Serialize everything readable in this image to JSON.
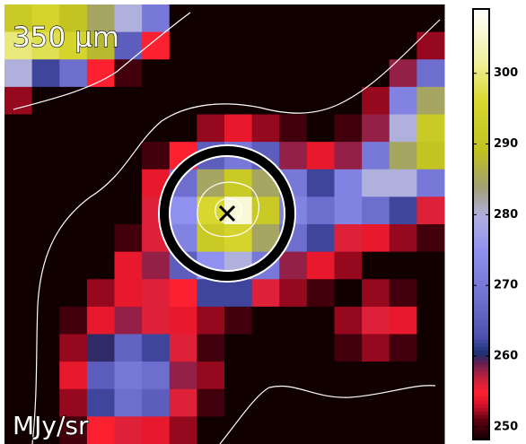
{
  "chart_data": {
    "type": "heatmap",
    "title": "350 μm",
    "colorbar_label": "MJy/sr",
    "z": [
      [
        292,
        295,
        290,
        285,
        280,
        270,
        248,
        248,
        248,
        248,
        248,
        248,
        248,
        248,
        248,
        248
      ],
      [
        300,
        298,
        295,
        288,
        265,
        255,
        248,
        248,
        248,
        248,
        248,
        248,
        248,
        248,
        248,
        252
      ],
      [
        280,
        262,
        268,
        255,
        250,
        248,
        248,
        248,
        248,
        248,
        248,
        248,
        248,
        248,
        258,
        268
      ],
      [
        252,
        248,
        248,
        248,
        248,
        248,
        248,
        248,
        248,
        248,
        248,
        248,
        248,
        252,
        272,
        285
      ],
      [
        248,
        248,
        248,
        248,
        248,
        248,
        248,
        252,
        254,
        252,
        250,
        248,
        250,
        258,
        280,
        292
      ],
      [
        248,
        248,
        248,
        248,
        248,
        250,
        255,
        265,
        270,
        265,
        258,
        254,
        258,
        270,
        285,
        290
      ],
      [
        248,
        248,
        248,
        248,
        248,
        254,
        268,
        285,
        292,
        285,
        270,
        262,
        272,
        280,
        280,
        270
      ],
      [
        248,
        248,
        248,
        248,
        248,
        256,
        275,
        296,
        306,
        292,
        272,
        268,
        272,
        268,
        262,
        256
      ],
      [
        248,
        248,
        248,
        248,
        250,
        256,
        272,
        292,
        295,
        285,
        268,
        262,
        256,
        254,
        252,
        250
      ],
      [
        248,
        248,
        248,
        248,
        254,
        258,
        265,
        275,
        280,
        270,
        258,
        254,
        252,
        248,
        248,
        248
      ],
      [
        248,
        248,
        248,
        252,
        254,
        256,
        255,
        262,
        262,
        256,
        252,
        250,
        248,
        252,
        250,
        248
      ],
      [
        248,
        248,
        250,
        254,
        258,
        256,
        254,
        252,
        250,
        248,
        248,
        248,
        252,
        256,
        254,
        248
      ],
      [
        248,
        248,
        252,
        260,
        266,
        262,
        256,
        250,
        248,
        248,
        248,
        248,
        250,
        252,
        250,
        248
      ],
      [
        248,
        248,
        254,
        265,
        270,
        268,
        258,
        252,
        248,
        248,
        248,
        248,
        248,
        248,
        248,
        248
      ],
      [
        248,
        248,
        252,
        262,
        268,
        265,
        256,
        250,
        248,
        248,
        248,
        248,
        248,
        248,
        248,
        248
      ],
      [
        248,
        248,
        250,
        255,
        256,
        254,
        252,
        248,
        248,
        248,
        248,
        248,
        248,
        248,
        248,
        248
      ]
    ],
    "clim": [
      248.2,
      309.1
    ],
    "cticks": [
      250,
      260,
      270,
      280,
      290,
      300
    ]
  }
}
